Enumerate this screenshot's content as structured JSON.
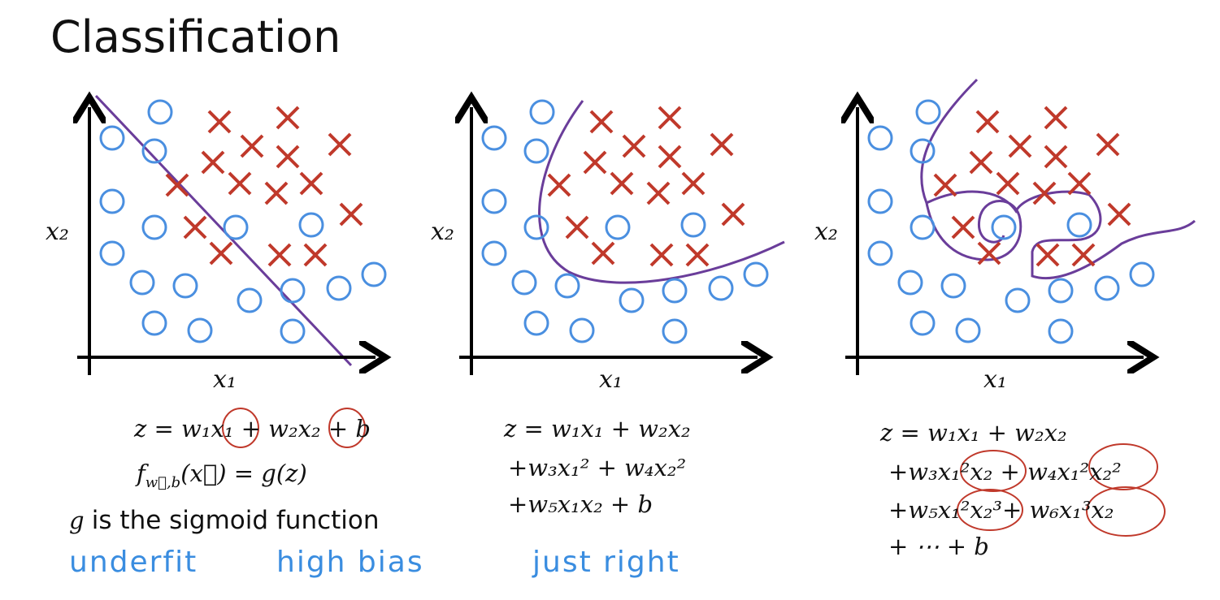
{
  "header": {
    "title": "Classification"
  },
  "panels": [
    {
      "x_label": "x₁",
      "y_label": "x₂",
      "equation": [
        "z = w₁x₁ + w₂x₂ + b"
      ],
      "f_line": {
        "f": "f",
        "sub": "w⃗,b",
        "rest": "(x⃗) = g(z)"
      },
      "g_line": {
        "g": "g",
        "rest": "is the sigmoid function"
      },
      "notes": [
        "underfit",
        "high bias"
      ]
    },
    {
      "x_label": "x₁",
      "y_label": "x₂",
      "equation": [
        "z = w₁x₁ + w₂x₂",
        "+w₃x₁² + w₄x₂²",
        "+w₅x₁x₂ + b"
      ],
      "notes": [
        "just right"
      ]
    },
    {
      "x_label": "x₁",
      "y_label": "x₂",
      "equation": [
        "z = w₁x₁ + w₂x₂",
        "+w₃x₁²x₂ + w₄x₁²x₂²",
        "+w₅x₁²x₂³+  w₆x₁³x₂",
        "+ ⋯ + b"
      ]
    }
  ]
}
